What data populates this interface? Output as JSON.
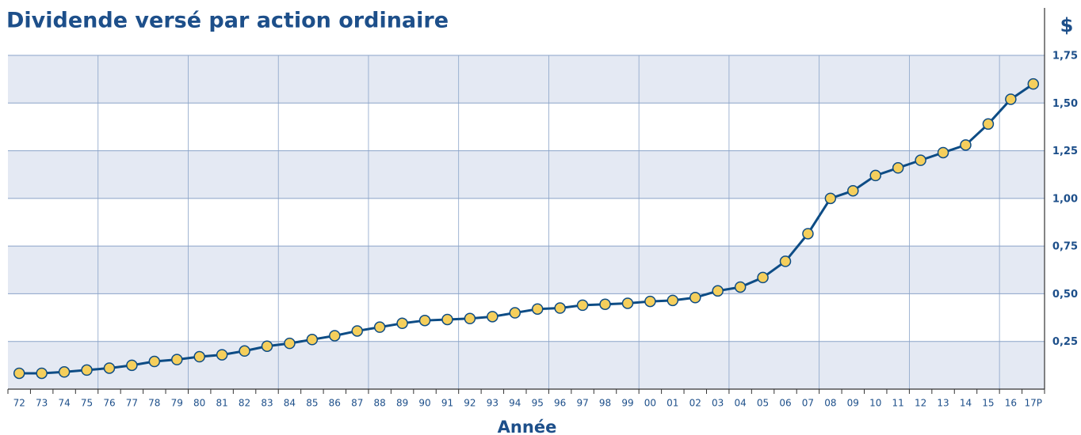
{
  "chart_data": {
    "type": "line",
    "title": "Dividende versé par action ordinaire",
    "y_unit": "$",
    "x_label": "Année",
    "categories": [
      "72",
      "73",
      "74",
      "75",
      "76",
      "77",
      "78",
      "79",
      "80",
      "81",
      "82",
      "83",
      "84",
      "85",
      "86",
      "87",
      "88",
      "89",
      "90",
      "91",
      "92",
      "93",
      "94",
      "95",
      "96",
      "97",
      "98",
      "99",
      "00",
      "01",
      "02",
      "03",
      "04",
      "05",
      "06",
      "07",
      "08",
      "09",
      "10",
      "11",
      "12",
      "13",
      "14",
      "15",
      "16",
      "17P"
    ],
    "series": [
      {
        "name": "Dividende",
        "color": "#0d4c85",
        "marker_color": "#f5cf5c",
        "values": [
          0.083,
          0.083,
          0.09,
          0.1,
          0.11,
          0.125,
          0.145,
          0.155,
          0.17,
          0.18,
          0.2,
          0.225,
          0.24,
          0.26,
          0.28,
          0.305,
          0.325,
          0.345,
          0.36,
          0.365,
          0.37,
          0.38,
          0.4,
          0.42,
          0.425,
          0.44,
          0.445,
          0.45,
          0.46,
          0.465,
          0.48,
          0.515,
          0.535,
          0.585,
          0.67,
          0.815,
          1.0,
          1.04,
          1.12,
          1.16,
          1.2,
          1.24,
          1.28,
          1.39,
          1.52,
          1.6
        ]
      }
    ],
    "ylim": [
      0,
      1.75
    ],
    "yticks": [
      {
        "value": 0.25,
        "label": "0,25"
      },
      {
        "value": 0.5,
        "label": "0,50"
      },
      {
        "value": 0.75,
        "label": "0,75"
      },
      {
        "value": 1.0,
        "label": "1,00"
      },
      {
        "value": 1.25,
        "label": "1,25"
      },
      {
        "value": 1.5,
        "label": "1,50"
      },
      {
        "value": 1.75,
        "label": "1,75"
      }
    ],
    "grid": true,
    "band_color": "#e4e9f3",
    "grid_color": "#8aa3c8",
    "text_color": "#1d4f8a"
  }
}
